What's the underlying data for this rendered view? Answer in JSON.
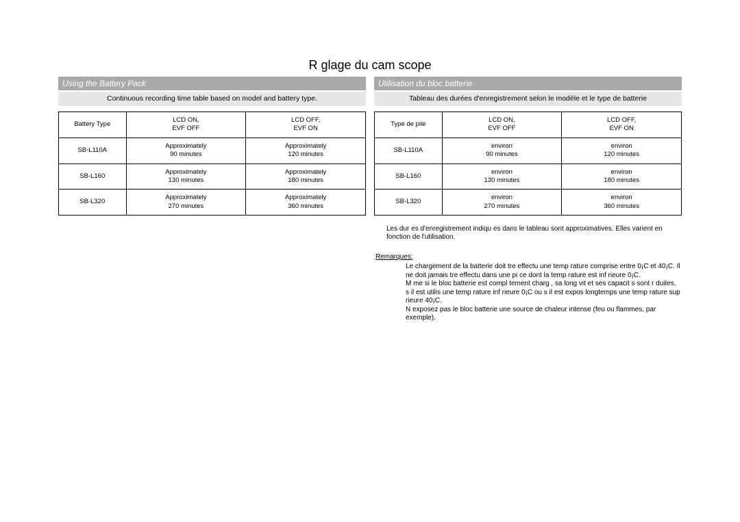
{
  "page": {
    "main_title": "R glage du cam scope"
  },
  "left": {
    "section_title": "Using the Battery Pack",
    "caption": "Continuous recording time table based on model and battery type.",
    "table": {
      "header": {
        "col0": "Battery  Type",
        "col1_l1": "LCD ON,",
        "col1_l2": "EVF OFF",
        "col2_l1": "LCD OFF,",
        "col2_l2": "EVF ON"
      },
      "rows": [
        {
          "type": "SB-L110A",
          "c1_l1": "Approximately",
          "c1_l2": "90 minutes",
          "c2_l1": "Approximately",
          "c2_l2": "120 minutes"
        },
        {
          "type": "SB-L160",
          "c1_l1": "Approximately",
          "c1_l2": "130 minutes",
          "c2_l1": "Approximately",
          "c2_l2": "180 minutes"
        },
        {
          "type": "SB-L320",
          "c1_l1": "Approximately",
          "c1_l2": "270 minutes",
          "c2_l1": "Approximately",
          "c2_l2": "360 minutes"
        }
      ]
    }
  },
  "right": {
    "section_title": "Utilisation du bloc batterie",
    "caption": "Tableau des durées d'enregistrement selon le modèle et le type de batterie",
    "table": {
      "header": {
        "col0": "Type de pile",
        "col1_l1": "LCD ON,",
        "col1_l2": "EVF OFF",
        "col2_l1": "LCD OFF,",
        "col2_l2": "EVF ON"
      },
      "rows": [
        {
          "type": "SB-L110A",
          "c1_l1": "environ",
          "c1_l2": "90 minutes",
          "c2_l1": "environ",
          "c2_l2": "120 minutes"
        },
        {
          "type": "SB-L160",
          "c1_l1": "environ",
          "c1_l2": "130 minutes",
          "c2_l1": "environ",
          "c2_l2": "180 minutes"
        },
        {
          "type": "SB-L320",
          "c1_l1": "environ",
          "c1_l2": "270 minutes",
          "c2_l1": "environ",
          "c2_l2": "360 minutes"
        }
      ]
    },
    "footnote": "Les dur es d'enregistrement indiqu es dans le tableau sont approximatives. Elles varient en fonction de l'utilisation.",
    "remarques_label": "Remarques:",
    "bullets": [
      "Le chargement de la batterie doit  tre effectu    une temp rature comprise entre 0¡C et 40¡C. Il ne doit jamais  tre effectu  dans une pi ce dont la temp rature est inf rieure   0¡C.",
      "M me si le bloc batterie est compl tement charg , sa long vit  et ses capacit s sont r duites, s il est utilis    une temp rature inf rieure   0¡C ou s il est expos  longtemps   une temp rature sup rieure   40¡C.",
      "N exposez pas le bloc batterie   une source de chaleur intense (feu ou flammes, par exemple)."
    ]
  },
  "style": {
    "section_bar_bg": "#a9a9a9",
    "section_bar_text": "#ffffff",
    "caption_bg": "#e6e6e6",
    "table_border_color": "#000000",
    "body_font_size_pt": 10,
    "title_font_size_pt": 18
  }
}
